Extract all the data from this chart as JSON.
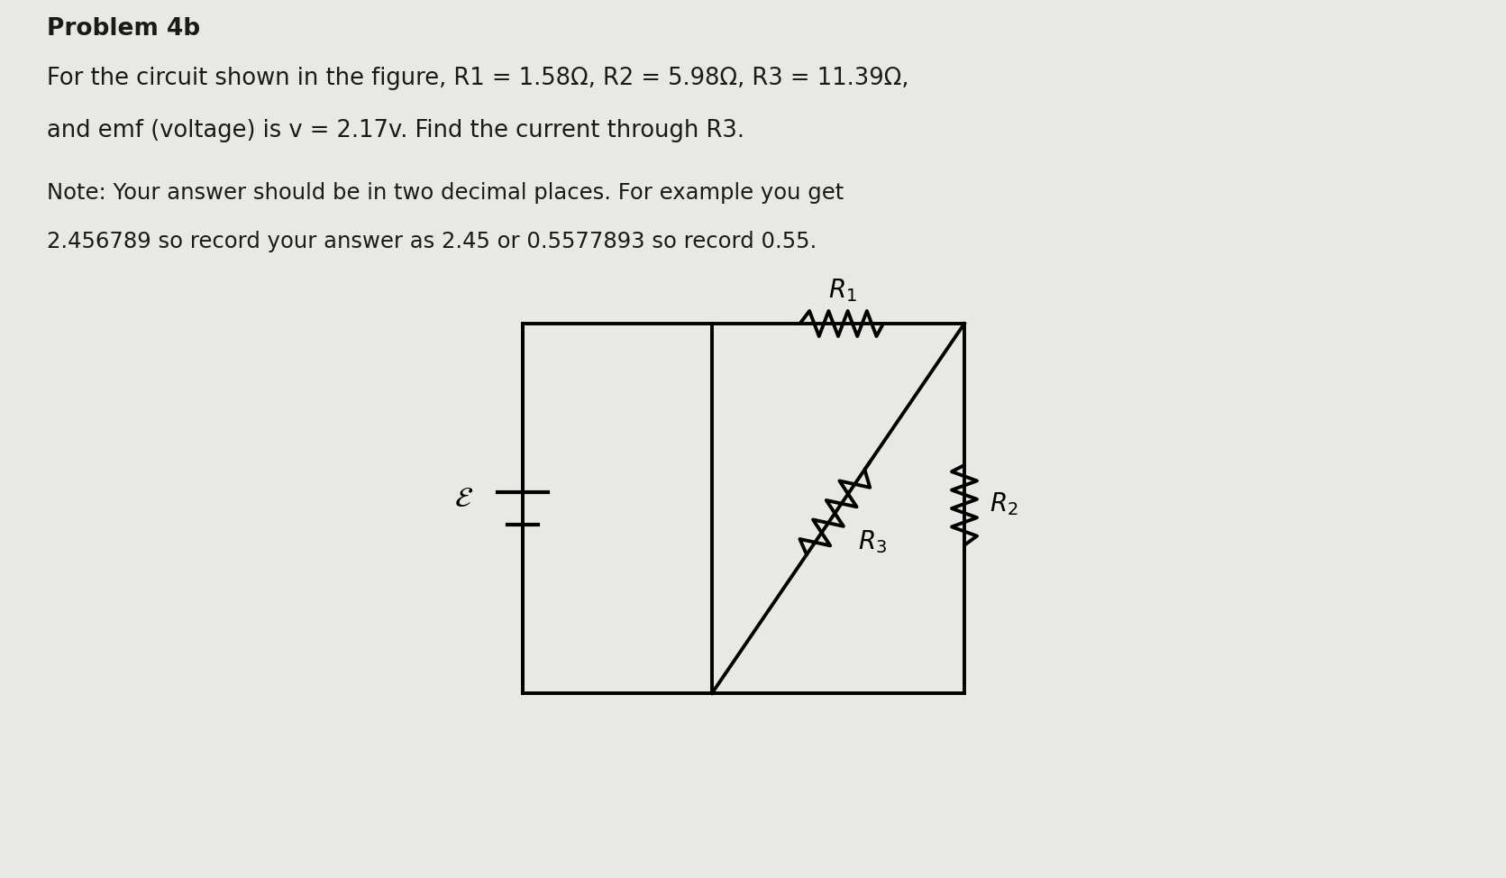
{
  "title": "Problem 4b",
  "line1": "For the circuit shown in the figure, R1 = 1.58Ω, R2 = 5.98Ω, R3 = 11.39Ω,",
  "line2": "and emf (voltage) is v = 2.17v. Find the current through R3.",
  "note_line1": "Note: Your answer should be in two decimal places. For example you get",
  "note_line2": "2.456789 so record your answer as 2.45 or 0.5577893 so record 0.55.",
  "bg_color": "#e8e8e4",
  "text_color": "#1a1a1a",
  "title_fontsize": 19,
  "body_fontsize": 18.5,
  "note_fontsize": 17.5,
  "circuit_color": "#000000",
  "circuit_lw": 2.8
}
